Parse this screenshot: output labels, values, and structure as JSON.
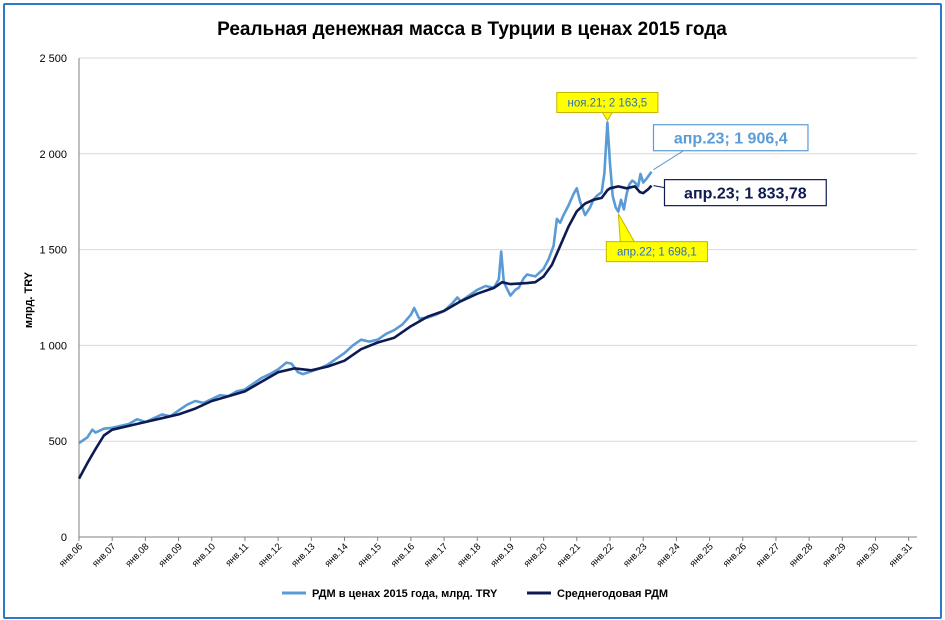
{
  "chart_data": {
    "type": "line",
    "title": "Реальная денежная масса в Турции в ценах 2015 года",
    "ylabel": "млрд. TRY",
    "ylim": [
      0,
      2500
    ],
    "yticks": [
      {
        "value": 0,
        "label": "0"
      },
      {
        "value": 500,
        "label": "500"
      },
      {
        "value": 1000,
        "label": "1 000"
      },
      {
        "value": 1500,
        "label": "1 500"
      },
      {
        "value": 2000,
        "label": "2 000"
      },
      {
        "value": 2500,
        "label": "2 500"
      }
    ],
    "xrange": [
      2006.0,
      2031.25
    ],
    "xticks": [
      {
        "value": 2006,
        "label": "янв.06"
      },
      {
        "value": 2007,
        "label": "янв.07"
      },
      {
        "value": 2008,
        "label": "янв.08"
      },
      {
        "value": 2009,
        "label": "янв.09"
      },
      {
        "value": 2010,
        "label": "янв.10"
      },
      {
        "value": 2011,
        "label": "янв.11"
      },
      {
        "value": 2012,
        "label": "янв.12"
      },
      {
        "value": 2013,
        "label": "янв.13"
      },
      {
        "value": 2014,
        "label": "янв.14"
      },
      {
        "value": 2015,
        "label": "янв.15"
      },
      {
        "value": 2016,
        "label": "янв.16"
      },
      {
        "value": 2017,
        "label": "янв.17"
      },
      {
        "value": 2018,
        "label": "янв.18"
      },
      {
        "value": 2019,
        "label": "янв.19"
      },
      {
        "value": 2020,
        "label": "янв.20"
      },
      {
        "value": 2021,
        "label": "янв.21"
      },
      {
        "value": 2022,
        "label": "янв.22"
      },
      {
        "value": 2023,
        "label": "янв.23"
      },
      {
        "value": 2024,
        "label": "янв.24"
      },
      {
        "value": 2025,
        "label": "янв.25"
      },
      {
        "value": 2026,
        "label": "янв.26"
      },
      {
        "value": 2027,
        "label": "янв.27"
      },
      {
        "value": 2028,
        "label": "янв.28"
      },
      {
        "value": 2029,
        "label": "янв.29"
      },
      {
        "value": 2030,
        "label": "янв.30"
      },
      {
        "value": 2031,
        "label": "янв.31"
      }
    ],
    "grid": true,
    "legend_position": "bottom",
    "series": [
      {
        "name": "РДМ в ценах 2015 года, млрд. TRY",
        "color": "#5b9bd5",
        "points": [
          [
            2006.0,
            490
          ],
          [
            2006.25,
            520
          ],
          [
            2006.4,
            560
          ],
          [
            2006.5,
            545
          ],
          [
            2006.75,
            565
          ],
          [
            2007.0,
            570
          ],
          [
            2007.5,
            590
          ],
          [
            2007.75,
            615
          ],
          [
            2008.0,
            600
          ],
          [
            2008.5,
            640
          ],
          [
            2008.75,
            630
          ],
          [
            2009.0,
            660
          ],
          [
            2009.25,
            690
          ],
          [
            2009.5,
            710
          ],
          [
            2009.75,
            700
          ],
          [
            2010.0,
            720
          ],
          [
            2010.25,
            740
          ],
          [
            2010.5,
            735
          ],
          [
            2010.75,
            760
          ],
          [
            2011.0,
            770
          ],
          [
            2011.25,
            800
          ],
          [
            2011.5,
            830
          ],
          [
            2011.75,
            850
          ],
          [
            2012.0,
            875
          ],
          [
            2012.25,
            910
          ],
          [
            2012.4,
            905
          ],
          [
            2012.6,
            860
          ],
          [
            2012.75,
            850
          ],
          [
            2013.0,
            865
          ],
          [
            2013.25,
            880
          ],
          [
            2013.5,
            900
          ],
          [
            2013.75,
            930
          ],
          [
            2014.0,
            960
          ],
          [
            2014.25,
            1000
          ],
          [
            2014.5,
            1030
          ],
          [
            2014.75,
            1020
          ],
          [
            2015.0,
            1030
          ],
          [
            2015.25,
            1060
          ],
          [
            2015.5,
            1080
          ],
          [
            2015.75,
            1110
          ],
          [
            2016.0,
            1160
          ],
          [
            2016.1,
            1195
          ],
          [
            2016.25,
            1140
          ],
          [
            2016.5,
            1145
          ],
          [
            2016.75,
            1160
          ],
          [
            2017.0,
            1180
          ],
          [
            2017.25,
            1220
          ],
          [
            2017.4,
            1250
          ],
          [
            2017.5,
            1230
          ],
          [
            2017.75,
            1260
          ],
          [
            2018.0,
            1290
          ],
          [
            2018.25,
            1310
          ],
          [
            2018.5,
            1300
          ],
          [
            2018.65,
            1345
          ],
          [
            2018.72,
            1490
          ],
          [
            2018.8,
            1330
          ],
          [
            2019.0,
            1260
          ],
          [
            2019.15,
            1290
          ],
          [
            2019.25,
            1300
          ],
          [
            2019.4,
            1350
          ],
          [
            2019.5,
            1370
          ],
          [
            2019.75,
            1360
          ],
          [
            2020.0,
            1400
          ],
          [
            2020.15,
            1450
          ],
          [
            2020.3,
            1520
          ],
          [
            2020.4,
            1660
          ],
          [
            2020.5,
            1640
          ],
          [
            2020.6,
            1680
          ],
          [
            2020.75,
            1730
          ],
          [
            2020.9,
            1790
          ],
          [
            2021.0,
            1820
          ],
          [
            2021.1,
            1750
          ],
          [
            2021.25,
            1680
          ],
          [
            2021.4,
            1720
          ],
          [
            2021.5,
            1760
          ],
          [
            2021.6,
            1780
          ],
          [
            2021.75,
            1800
          ],
          [
            2021.83,
            1900
          ],
          [
            2021.92,
            2163.5
          ],
          [
            2022.0,
            1950
          ],
          [
            2022.08,
            1780
          ],
          [
            2022.17,
            1720
          ],
          [
            2022.25,
            1698.1
          ],
          [
            2022.33,
            1760
          ],
          [
            2022.42,
            1710
          ],
          [
            2022.5,
            1790
          ],
          [
            2022.58,
            1840
          ],
          [
            2022.67,
            1860
          ],
          [
            2022.75,
            1850
          ],
          [
            2022.85,
            1830
          ],
          [
            2022.92,
            1895
          ],
          [
            2023.0,
            1850
          ],
          [
            2023.1,
            1870
          ],
          [
            2023.25,
            1906.4
          ]
        ]
      },
      {
        "name": "Среднегодовая РДМ",
        "color": "#0d1b52",
        "points": [
          [
            2006.0,
            305
          ],
          [
            2006.25,
            385
          ],
          [
            2006.5,
            460
          ],
          [
            2006.75,
            530
          ],
          [
            2007.0,
            560
          ],
          [
            2007.5,
            580
          ],
          [
            2008.0,
            600
          ],
          [
            2008.5,
            620
          ],
          [
            2009.0,
            640
          ],
          [
            2009.5,
            670
          ],
          [
            2010.0,
            710
          ],
          [
            2010.5,
            735
          ],
          [
            2011.0,
            760
          ],
          [
            2011.5,
            810
          ],
          [
            2012.0,
            860
          ],
          [
            2012.5,
            880
          ],
          [
            2013.0,
            870
          ],
          [
            2013.5,
            890
          ],
          [
            2014.0,
            920
          ],
          [
            2014.5,
            980
          ],
          [
            2015.0,
            1015
          ],
          [
            2015.5,
            1040
          ],
          [
            2016.0,
            1100
          ],
          [
            2016.5,
            1150
          ],
          [
            2017.0,
            1180
          ],
          [
            2017.5,
            1230
          ],
          [
            2018.0,
            1270
          ],
          [
            2018.5,
            1300
          ],
          [
            2018.75,
            1330
          ],
          [
            2019.0,
            1320
          ],
          [
            2019.5,
            1325
          ],
          [
            2019.75,
            1330
          ],
          [
            2020.0,
            1360
          ],
          [
            2020.25,
            1420
          ],
          [
            2020.5,
            1520
          ],
          [
            2020.75,
            1620
          ],
          [
            2021.0,
            1700
          ],
          [
            2021.25,
            1740
          ],
          [
            2021.5,
            1760
          ],
          [
            2021.75,
            1770
          ],
          [
            2021.92,
            1810
          ],
          [
            2022.0,
            1820
          ],
          [
            2022.25,
            1830
          ],
          [
            2022.5,
            1820
          ],
          [
            2022.75,
            1830
          ],
          [
            2022.9,
            1800
          ],
          [
            2023.0,
            1795
          ],
          [
            2023.15,
            1815
          ],
          [
            2023.25,
            1833.78
          ]
        ]
      }
    ],
    "annotations": [
      {
        "text": "ноя.21; 2 163,5",
        "x": 2021.92,
        "y": 2163.5,
        "style": "yellow",
        "placement": "above"
      },
      {
        "text": "апр.22; 1 698,1",
        "x": 2022.25,
        "y": 1698.1,
        "style": "yellow",
        "placement": "below"
      },
      {
        "text": "апр.23;  1 906,4",
        "x": 2023.25,
        "y": 1906.4,
        "style": "light",
        "placement": "upper-right"
      },
      {
        "text": "апр.23;  1 833,78",
        "x": 2023.25,
        "y": 1833.78,
        "style": "dark",
        "placement": "right"
      }
    ]
  }
}
